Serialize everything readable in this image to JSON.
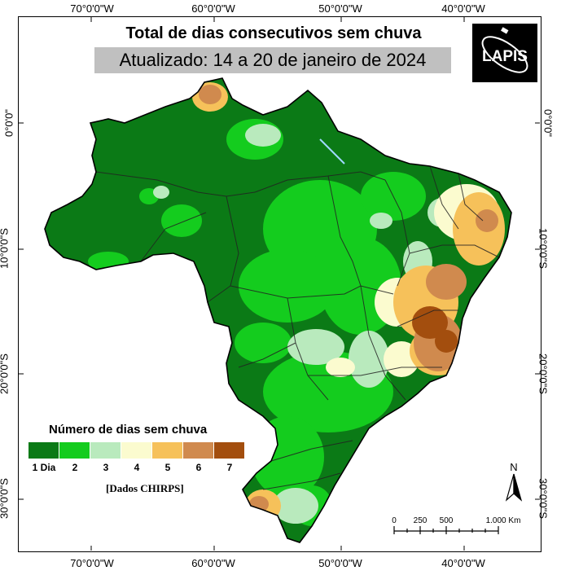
{
  "map": {
    "title": "Total de dias consecutivos sem chuva",
    "subtitle": "Atualizado: 14 a 20 de janeiro de 2024",
    "logo_text": "LAPIS",
    "axes": {
      "longitude_labels": [
        "70°0'0\"W",
        "60°0'0\"W",
        "50°0'0\"W",
        "40°0'0\"W"
      ],
      "latitude_labels": [
        "0°0'0\"",
        "10°0'0\"S",
        "20°0'0\"S",
        "30°0'0\"S"
      ]
    },
    "legend": {
      "title": "Número de dias sem chuva",
      "classes": [
        {
          "label": "1 Dia",
          "color": "#0b7a16"
        },
        {
          "label": "2",
          "color": "#14cc1e"
        },
        {
          "label": "3",
          "color": "#b9eabd"
        },
        {
          "label": "4",
          "color": "#fbfbcf"
        },
        {
          "label": "5",
          "color": "#f6c15a"
        },
        {
          "label": "6",
          "color": "#d08a4e"
        },
        {
          "label": "7",
          "color": "#a34e0e"
        }
      ]
    },
    "data_source": "[Dados CHIRPS]",
    "north_label": "N",
    "scale": {
      "labels": [
        "0",
        "250",
        "500",
        "1.000 Km"
      ]
    }
  }
}
